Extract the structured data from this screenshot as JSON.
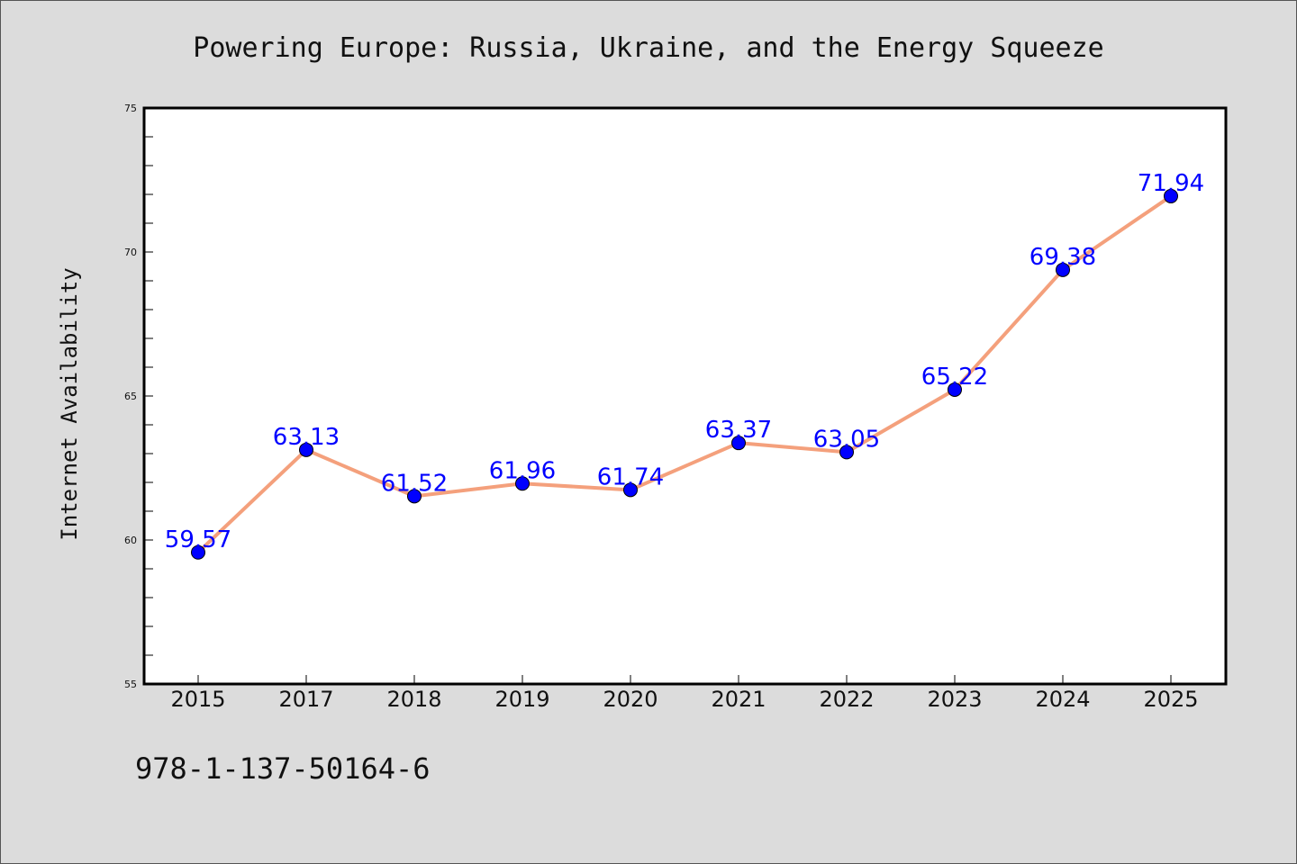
{
  "chart_data": {
    "type": "line",
    "title": "Powering Europe: Russia, Ukraine, and the Energy Squeeze",
    "xlabel": "",
    "ylabel": "Internet Availability",
    "categories": [
      "2015",
      "2017",
      "2018",
      "2019",
      "2020",
      "2021",
      "2022",
      "2023",
      "2024",
      "2025"
    ],
    "values": [
      59.57,
      63.13,
      61.52,
      61.96,
      61.74,
      63.37,
      63.05,
      65.22,
      69.38,
      71.94
    ],
    "data_labels": [
      "59.57",
      "63.13",
      "61.52",
      "61.96",
      "61.74",
      "63.37",
      "63.05",
      "65.22",
      "69.38",
      "71.94"
    ],
    "ylim": [
      55,
      75
    ],
    "yticks": [
      55,
      60,
      65,
      70,
      75
    ],
    "grid": false,
    "line_color": "#f4a07c",
    "marker_color": "#0000ff",
    "label_color": "#0000ff",
    "plot_background": "#ffffff",
    "figure_background": "#dcdcdc"
  },
  "footer": {
    "isbn": "978-1-137-50164-6"
  }
}
